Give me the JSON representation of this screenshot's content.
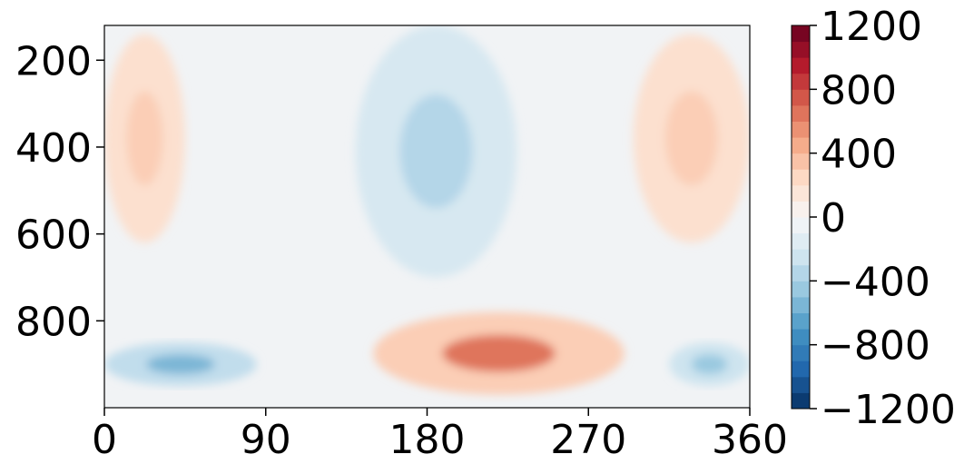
{
  "chart_data": {
    "type": "heatmap",
    "subtype": "filled-contour",
    "title": "",
    "xlabel": "",
    "ylabel": "",
    "xlim": [
      0,
      360
    ],
    "ylim": [
      1000,
      120
    ],
    "y_inverted": true,
    "x_ticks": [
      0,
      90,
      180,
      270,
      360
    ],
    "x_tick_labels": [
      "0",
      "90",
      "180",
      "270",
      "360"
    ],
    "y_ticks": [
      200,
      400,
      600,
      800
    ],
    "y_tick_labels": [
      "200",
      "400",
      "600",
      "800"
    ],
    "colormap": "RdBu_r",
    "colorbar": {
      "vmin": -1200,
      "vmax": 1200,
      "levels": 24,
      "ticks": [
        1200,
        800,
        400,
        0,
        -400,
        -800,
        -1200
      ],
      "tick_labels": [
        "1200",
        "800",
        "400",
        "0",
        "−400",
        "−800",
        "−1200"
      ]
    },
    "grid": false,
    "features": [
      {
        "kind": "positive-region",
        "x_range": [
          0,
          45
        ],
        "y_range": [
          140,
          620
        ],
        "value": 200,
        "peak": 300
      },
      {
        "kind": "positive-region",
        "x_range": [
          295,
          360
        ],
        "y_range": [
          140,
          620
        ],
        "value": 200,
        "peak": 300
      },
      {
        "kind": "negative-region",
        "x_range": [
          140,
          230
        ],
        "y_range": [
          120,
          700
        ],
        "value": -200,
        "peak": -350
      },
      {
        "kind": "positive-region",
        "x_range": [
          150,
          290
        ],
        "y_range": [
          780,
          970
        ],
        "value": 300,
        "peak": 650
      },
      {
        "kind": "negative-region",
        "x_range": [
          0,
          85
        ],
        "y_range": [
          850,
          950
        ],
        "value": -300,
        "peak": -550
      },
      {
        "kind": "negative-region",
        "x_range": [
          315,
          360
        ],
        "y_range": [
          850,
          950
        ],
        "value": -250,
        "peak": -450
      }
    ]
  }
}
